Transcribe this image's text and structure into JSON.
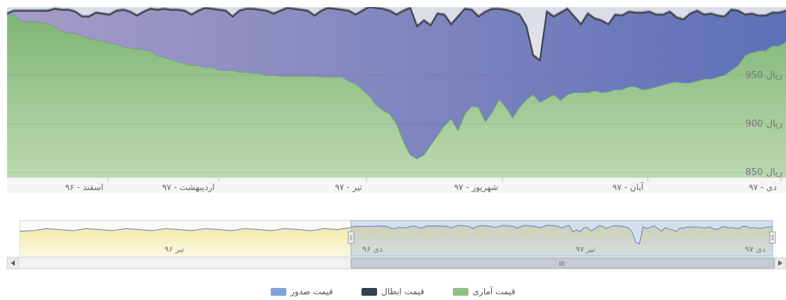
{
  "chart_data": {
    "type": "area",
    "y_axis_labels": [
      "ریال 950",
      "ریال 900",
      "ریال 850"
    ],
    "y_ticks": [
      950,
      900,
      850
    ],
    "ylim": [
      845,
      1020
    ],
    "x_tick_labels": [
      "اسفند - ۹۶",
      "اردیبهشت - ۹۷",
      "تیر - ۹۷",
      "شهریور - ۹۷",
      "آبان - ۹۷",
      "دی - ۹۷"
    ],
    "series": [
      {
        "name": "قیمت آماری",
        "color": "#8fbf84",
        "values": [
          1012,
          1012,
          1005,
          1005,
          1005,
          1004,
          1003,
          1000,
          995,
          993,
          993,
          990,
          988,
          986,
          985,
          983,
          982,
          979,
          978,
          977,
          976,
          975,
          970,
          968,
          966,
          964,
          962,
          960,
          960,
          958,
          958,
          955,
          955,
          955,
          953,
          953,
          952,
          952,
          950,
          950,
          949,
          949,
          949,
          949,
          949,
          949,
          948,
          948,
          948,
          948,
          944,
          941,
          935,
          929,
          919,
          914,
          910,
          900,
          882,
          868,
          864,
          868,
          878,
          888,
          898,
          905,
          893,
          910,
          918,
          917,
          902,
          912,
          925,
          917,
          906,
          917,
          925,
          930,
          922,
          926,
          930,
          924,
          930,
          932,
          932,
          932,
          934,
          932,
          933,
          935,
          935,
          938,
          938,
          935,
          936,
          938,
          940,
          942,
          943,
          942,
          942,
          944,
          946,
          946,
          948,
          950,
          955,
          960,
          970,
          973,
          975,
          975,
          980,
          980,
          984
        ]
      },
      {
        "name": "قیمت ابطال",
        "color": "#3a3f4c",
        "values": [
          1013,
          1016,
          1016,
          1016,
          1016,
          1016,
          1016,
          1018,
          1017,
          1017,
          1015,
          1010,
          1010,
          1014,
          1013,
          1012,
          1016,
          1017,
          1015,
          1011,
          1015,
          1018,
          1017,
          1018,
          1017,
          1017,
          1016,
          1012,
          1016,
          1019,
          1018,
          1017,
          1016,
          1010,
          1016,
          1018,
          1018,
          1017,
          1016,
          1013,
          1016,
          1019,
          1018,
          1017,
          1016,
          1011,
          1016,
          1019,
          1018,
          1017,
          1016,
          1012,
          1016,
          1020,
          1019,
          1018,
          1016,
          1012,
          1016,
          1019,
          1000,
          1006,
          1001,
          1013,
          1012,
          1002,
          1010,
          1018,
          1017,
          1010,
          1015,
          1018,
          1018,
          1017,
          1015,
          1012,
          1000,
          970,
          965,
          1015,
          1010,
          1014,
          1018,
          1010,
          1002,
          1013,
          1008,
          1006,
          1002,
          1012,
          1011,
          1015,
          1014,
          1014,
          1015,
          1012,
          1012,
          1015,
          1009,
          1007,
          1013,
          1016,
          1012,
          1013,
          1011,
          1010,
          1017,
          1016,
          1012,
          1013,
          1011,
          1011,
          1014,
          1014,
          1016
        ]
      },
      {
        "name": "قیمت صدور",
        "color": "#7ea3d8",
        "values": [
          1014,
          1017,
          1017,
          1017,
          1017,
          1017,
          1017,
          1019,
          1018,
          1018,
          1016,
          1011,
          1011,
          1015,
          1014,
          1013,
          1017,
          1018,
          1016,
          1012,
          1016,
          1019,
          1018,
          1019,
          1018,
          1018,
          1017,
          1013,
          1017,
          1020,
          1019,
          1018,
          1017,
          1011,
          1017,
          1019,
          1019,
          1018,
          1017,
          1014,
          1017,
          1020,
          1019,
          1018,
          1017,
          1012,
          1017,
          1020,
          1019,
          1018,
          1017,
          1013,
          1017,
          1021,
          1020,
          1019,
          1017,
          1013,
          1017,
          1020,
          1001,
          1007,
          1002,
          1014,
          1013,
          1003,
          1011,
          1019,
          1018,
          1011,
          1016,
          1019,
          1019,
          1018,
          1016,
          1013,
          1001,
          971,
          966,
          1016,
          1011,
          1015,
          1019,
          1011,
          1003,
          1014,
          1009,
          1007,
          1003,
          1013,
          1012,
          1016,
          1015,
          1015,
          1016,
          1013,
          1013,
          1016,
          1010,
          1008,
          1014,
          1017,
          1013,
          1014,
          1012,
          1011,
          1018,
          1017,
          1013,
          1014,
          1012,
          1012,
          1015,
          1015,
          1017
        ]
      }
    ],
    "navigator": {
      "labels": [
        "تیر ۹۶",
        "دی ۹۶",
        "تیر ۹۷",
        "دی ۹۷"
      ],
      "scrollbar_grip": "III",
      "selection_start": 0.44,
      "selection_end": 1.0
    },
    "legend": [
      "قیمت آماری",
      "قیمت ابطال",
      "قیمت صدور"
    ]
  }
}
